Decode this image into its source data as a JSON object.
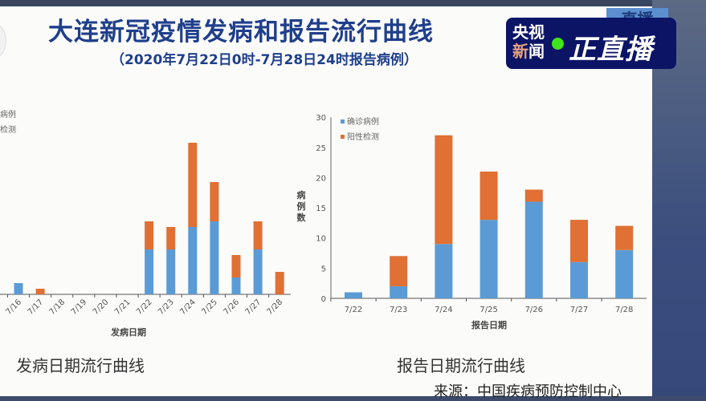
{
  "slide": {
    "title": "大连新冠疫情发病和报告流行曲线",
    "subtitle": "（2020年7月22日0时-7月28日24时报告病例）",
    "source": "来源：中国疾病预防控制中心"
  },
  "overlay": {
    "behind_text": "直播",
    "logo_line1": "央视",
    "logo_line2a": "新",
    "logo_line2b": "闻",
    "logo_live": "正直播",
    "logo_dot_color": "#3ee61b"
  },
  "colors": {
    "confirmed": "#5b9bd5",
    "positive": "#e07033"
  },
  "chart_data": [
    {
      "type": "bar",
      "stacked": true,
      "caption": "发病日期流行曲线",
      "xlabel": "发病日期",
      "ylabel": "",
      "categories": [
        "7/16",
        "7/17",
        "7/18",
        "7/19",
        "7/20",
        "7/21",
        "7/22",
        "7/23",
        "7/24",
        "7/25",
        "7/26",
        "7/27",
        "7/28"
      ],
      "series": [
        {
          "name": "确诊病例",
          "values": [
            2,
            0,
            0,
            0,
            0,
            0,
            8,
            8,
            12,
            13,
            3,
            8,
            0
          ]
        },
        {
          "name": "阳性检测",
          "values": [
            0,
            1,
            0,
            0,
            0,
            0,
            5,
            4,
            15,
            7,
            4,
            5,
            4
          ]
        }
      ],
      "legend": "top-left"
    },
    {
      "type": "bar",
      "stacked": true,
      "caption": "报告日期流行曲线",
      "xlabel": "报告日期",
      "ylabel": "病例数",
      "ylim": [
        0,
        30
      ],
      "yticks": [
        "0",
        "5",
        "10",
        "15",
        "20",
        "25",
        "30"
      ],
      "categories": [
        "7/22",
        "7/23",
        "7/24",
        "7/25",
        "7/26",
        "7/27",
        "7/28"
      ],
      "series": [
        {
          "name": "确诊病例",
          "values": [
            1,
            2,
            9,
            13,
            16,
            6,
            8
          ]
        },
        {
          "name": "阳性检测",
          "values": [
            0,
            5,
            18,
            8,
            2,
            7,
            4
          ]
        }
      ],
      "legend": "top-left"
    }
  ]
}
